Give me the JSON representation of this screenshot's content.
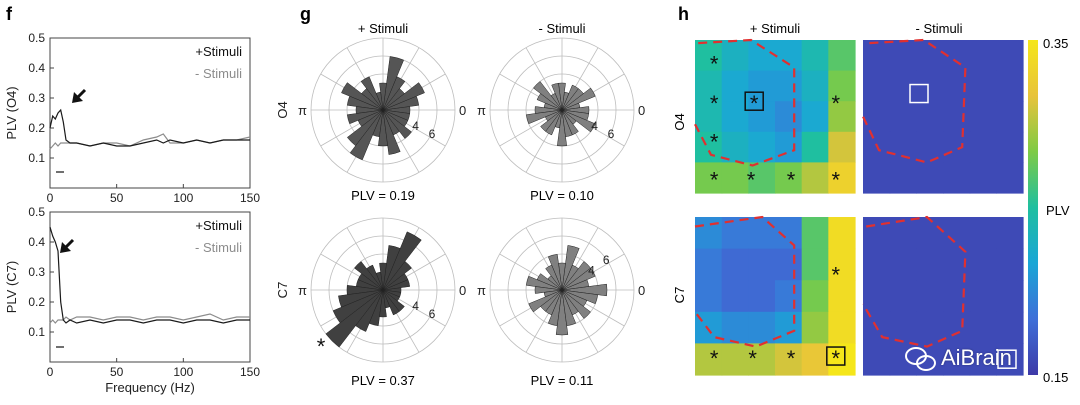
{
  "figure": {
    "panel_f": {
      "letter": "f",
      "plots": [
        {
          "ylabel": "PLV (O4)",
          "legend": [
            "+Stimuli",
            "- Stimuli"
          ],
          "yticks": [
            "0.5",
            "0.4",
            "0.3",
            "0.2",
            "0.1"
          ],
          "xticks": [
            "0",
            "50",
            "100",
            "150"
          ],
          "xlabel": ""
        },
        {
          "ylabel": "PLV (C7)",
          "legend": [
            "+Stimuli",
            "- Stimuli"
          ],
          "yticks": [
            "0.5",
            "0.4",
            "0.3",
            "0.2",
            "0.1"
          ],
          "xticks": [
            "0",
            "50",
            "100",
            "150"
          ],
          "xlabel": "Frequency (Hz)"
        }
      ]
    },
    "panel_g": {
      "letter": "g",
      "col_titles": [
        "+ Stimuli",
        "- Stimuli"
      ],
      "row_labels": [
        "O4",
        "C7"
      ],
      "angle_labels": {
        "zero": "0",
        "pi": "π"
      },
      "radial_ticks": [
        "4",
        "6"
      ],
      "plv_labels": [
        [
          "PLV = 0.19",
          "PLV = 0.10"
        ],
        [
          "PLV = 0.37",
          "PLV = 0.11"
        ]
      ],
      "star": "*"
    },
    "panel_h": {
      "letter": "h",
      "col_titles": [
        "+ Stimuli",
        "- Stimuli"
      ],
      "row_labels": [
        "O4",
        "C7"
      ],
      "colorbar": {
        "max": "0.35",
        "min": "0.15",
        "label": "PLV",
        "colors": [
          "#3e3aa8",
          "#3f6fd8",
          "#1aa6d6",
          "#1fbfa0",
          "#7ecb45",
          "#e8c33a",
          "#f5e61a"
        ]
      },
      "star": "*"
    },
    "watermark": "AiBrain"
  },
  "chart_data": [
    {
      "type": "line",
      "title": "",
      "xlabel": "",
      "ylabel": "PLV (O4)",
      "xlim": [
        0,
        150
      ],
      "ylim": [
        0,
        0.5
      ],
      "series": [
        {
          "name": "+Stimuli",
          "x": [
            0,
            2,
            4,
            6,
            8,
            10,
            12,
            15,
            20,
            30,
            40,
            50,
            60,
            70,
            80,
            85,
            90,
            100,
            110,
            120,
            130,
            140,
            150
          ],
          "y": [
            0.2,
            0.24,
            0.23,
            0.25,
            0.26,
            0.22,
            0.16,
            0.15,
            0.15,
            0.14,
            0.15,
            0.14,
            0.14,
            0.15,
            0.16,
            0.15,
            0.16,
            0.15,
            0.16,
            0.15,
            0.16,
            0.16,
            0.16
          ],
          "color": "#1a1a1a"
        },
        {
          "name": "- Stimuli",
          "x": [
            0,
            2,
            4,
            6,
            8,
            10,
            12,
            15,
            20,
            30,
            40,
            50,
            60,
            70,
            80,
            85,
            90,
            100,
            110,
            120,
            130,
            140,
            150
          ],
          "y": [
            0.13,
            0.14,
            0.15,
            0.14,
            0.15,
            0.15,
            0.15,
            0.15,
            0.15,
            0.14,
            0.15,
            0.15,
            0.14,
            0.16,
            0.17,
            0.18,
            0.15,
            0.15,
            0.16,
            0.15,
            0.16,
            0.16,
            0.17
          ],
          "color": "#8c8c8c"
        }
      ]
    },
    {
      "type": "line",
      "title": "",
      "xlabel": "Frequency (Hz)",
      "ylabel": "PLV (C7)",
      "xlim": [
        0,
        150
      ],
      "ylim": [
        0,
        0.5
      ],
      "series": [
        {
          "name": "+Stimuli",
          "x": [
            0,
            2,
            4,
            6,
            8,
            10,
            12,
            15,
            20,
            30,
            40,
            50,
            60,
            70,
            80,
            90,
            100,
            110,
            120,
            130,
            140,
            150
          ],
          "y": [
            0.45,
            0.42,
            0.4,
            0.37,
            0.2,
            0.14,
            0.13,
            0.14,
            0.13,
            0.14,
            0.13,
            0.14,
            0.14,
            0.13,
            0.14,
            0.14,
            0.13,
            0.14,
            0.14,
            0.13,
            0.14,
            0.14
          ],
          "color": "#1a1a1a"
        },
        {
          "name": "- Stimuli",
          "x": [
            0,
            2,
            4,
            6,
            8,
            10,
            12,
            15,
            20,
            30,
            40,
            50,
            60,
            70,
            80,
            90,
            100,
            110,
            120,
            130,
            140,
            150
          ],
          "y": [
            0.13,
            0.14,
            0.13,
            0.14,
            0.14,
            0.14,
            0.15,
            0.14,
            0.15,
            0.15,
            0.14,
            0.15,
            0.15,
            0.14,
            0.15,
            0.15,
            0.14,
            0.15,
            0.16,
            0.14,
            0.15,
            0.15
          ],
          "color": "#8c8c8c"
        }
      ]
    },
    {
      "type": "bar",
      "name": "polar O4 +Stimuli",
      "rmax": 8,
      "color": "#555555",
      "angles_deg": [
        0,
        15,
        30,
        45,
        60,
        75,
        90,
        105,
        120,
        135,
        150,
        165,
        180,
        195,
        210,
        225,
        240,
        255,
        270,
        285,
        300,
        315,
        330,
        345
      ],
      "values": [
        3,
        4,
        5,
        3,
        4,
        6,
        3,
        2,
        4,
        3,
        5,
        4,
        3,
        4,
        3,
        5,
        6,
        3,
        4,
        5,
        3,
        4,
        3,
        3
      ]
    },
    {
      "type": "bar",
      "name": "polar O4 -Stimuli",
      "rmax": 8,
      "color": "#808080",
      "angles_deg": [
        0,
        15,
        30,
        45,
        60,
        75,
        90,
        105,
        120,
        135,
        150,
        165,
        180,
        195,
        210,
        225,
        240,
        255,
        270,
        285,
        300,
        315,
        330,
        345
      ],
      "values": [
        3,
        2,
        4,
        3,
        3,
        2,
        3,
        3,
        2,
        4,
        3,
        2,
        3,
        4,
        2,
        3,
        3,
        2,
        4,
        3,
        3,
        2,
        4,
        3
      ]
    },
    {
      "type": "bar",
      "name": "polar C7 +Stimuli",
      "rmax": 8,
      "color": "#404040",
      "angles_deg": [
        0,
        15,
        30,
        45,
        60,
        75,
        90,
        105,
        120,
        135,
        150,
        165,
        180,
        195,
        210,
        225,
        240,
        255,
        270,
        285,
        300,
        315,
        330,
        345
      ],
      "values": [
        2,
        3,
        3,
        4,
        7,
        5,
        3,
        2,
        3,
        4,
        3,
        3,
        4,
        5,
        6,
        8,
        5,
        4,
        3,
        2,
        3,
        3,
        2,
        2
      ]
    },
    {
      "type": "bar",
      "name": "polar C7 -Stimuli",
      "rmax": 8,
      "color": "#808080",
      "angles_deg": [
        0,
        15,
        30,
        45,
        60,
        75,
        90,
        105,
        120,
        135,
        150,
        165,
        180,
        195,
        210,
        225,
        240,
        255,
        270,
        285,
        300,
        315,
        330,
        345
      ],
      "values": [
        5,
        3,
        4,
        4,
        3,
        5,
        3,
        4,
        3,
        2,
        3,
        4,
        3,
        2,
        4,
        3,
        3,
        4,
        5,
        4,
        3,
        4,
        3,
        4
      ]
    },
    {
      "type": "heatmap",
      "name": "O4 +Stimuli",
      "grid": [
        [
          0.25,
          0.23,
          0.22,
          0.22,
          0.24,
          0.27
        ],
        [
          0.24,
          0.22,
          0.21,
          0.21,
          0.23,
          0.28
        ],
        [
          0.24,
          0.22,
          0.21,
          0.2,
          0.22,
          0.29
        ],
        [
          0.25,
          0.23,
          0.22,
          0.21,
          0.25,
          0.31
        ],
        [
          0.28,
          0.28,
          0.27,
          0.28,
          0.3,
          0.33
        ]
      ]
    },
    {
      "type": "heatmap",
      "name": "O4 -Stimuli",
      "grid": [
        [
          0.16,
          0.16,
          0.16,
          0.16,
          0.16,
          0.16
        ],
        [
          0.16,
          0.16,
          0.16,
          0.16,
          0.16,
          0.16
        ],
        [
          0.16,
          0.16,
          0.16,
          0.16,
          0.16,
          0.16
        ],
        [
          0.16,
          0.16,
          0.16,
          0.16,
          0.16,
          0.16
        ],
        [
          0.16,
          0.16,
          0.16,
          0.16,
          0.16,
          0.16
        ]
      ]
    },
    {
      "type": "heatmap",
      "name": "C7 +Stimuli",
      "grid": [
        [
          0.2,
          0.19,
          0.19,
          0.19,
          0.27,
          0.34
        ],
        [
          0.19,
          0.18,
          0.18,
          0.18,
          0.27,
          0.34
        ],
        [
          0.19,
          0.18,
          0.18,
          0.19,
          0.28,
          0.34
        ],
        [
          0.21,
          0.2,
          0.2,
          0.21,
          0.29,
          0.34
        ],
        [
          0.3,
          0.3,
          0.3,
          0.31,
          0.32,
          0.35
        ]
      ]
    },
    {
      "type": "heatmap",
      "name": "C7 -Stimuli",
      "grid": [
        [
          0.16,
          0.16,
          0.16,
          0.16,
          0.16,
          0.16
        ],
        [
          0.16,
          0.16,
          0.16,
          0.16,
          0.16,
          0.16
        ],
        [
          0.16,
          0.16,
          0.16,
          0.16,
          0.16,
          0.16
        ],
        [
          0.16,
          0.16,
          0.16,
          0.16,
          0.16,
          0.16
        ],
        [
          0.16,
          0.16,
          0.16,
          0.16,
          0.16,
          0.16
        ]
      ]
    }
  ]
}
